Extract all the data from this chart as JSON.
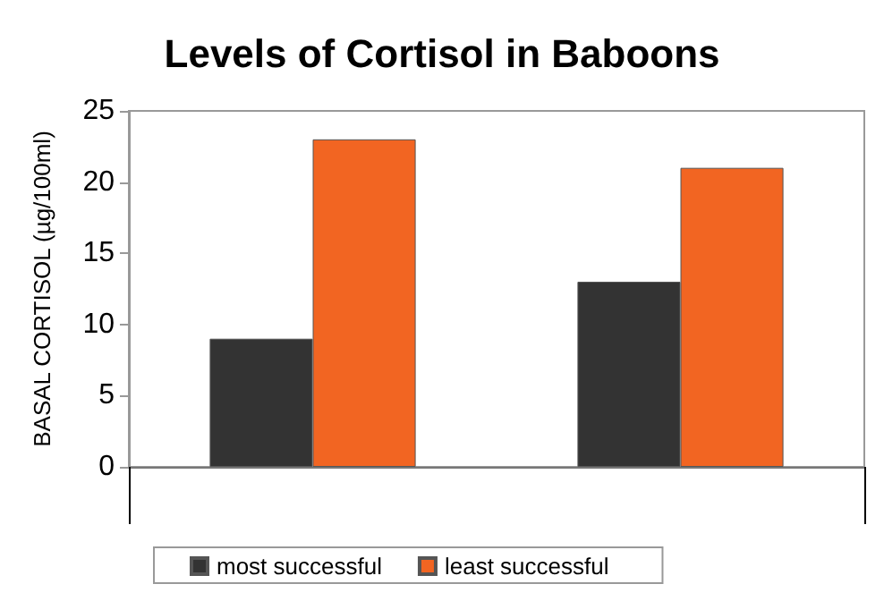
{
  "chart_data": {
    "type": "bar",
    "title": "Levels of Cortisol in Baboons",
    "ylabel": "BASAL CORTISOL (µg/100ml)",
    "categories": [
      null,
      null
    ],
    "series": [
      {
        "name": "most successful",
        "color": "#333333",
        "values": [
          9,
          13
        ]
      },
      {
        "name": "least successful",
        "color": "#f26522",
        "values": [
          23,
          21
        ]
      }
    ],
    "ylim": [
      0,
      25
    ],
    "yticks": [
      0,
      5,
      10,
      15,
      20,
      25
    ],
    "grid": false,
    "legend": "bottom"
  }
}
